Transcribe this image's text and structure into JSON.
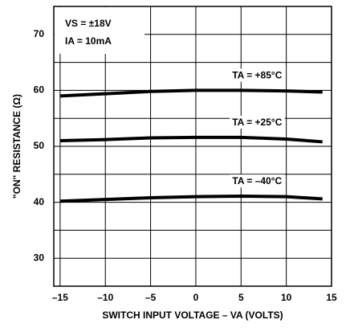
{
  "chart_data": {
    "type": "line",
    "xlabel": "SWITCH INPUT VOLTAGE – VA  (VOLTS)",
    "ylabel": "\"ON\" RESISTANCE (Ω)",
    "annotations": [
      "VS = ±18V",
      "IA = 10mA"
    ],
    "x": [
      -15,
      -10,
      -5,
      0,
      5,
      10,
      14
    ],
    "series": [
      {
        "name": "TA = +85°C",
        "color": "#000000",
        "values": [
          59.0,
          59.4,
          59.8,
          60.0,
          60.0,
          59.9,
          59.7
        ]
      },
      {
        "name": "TA = +25°C",
        "color": "#000000",
        "values": [
          51.0,
          51.2,
          51.5,
          51.6,
          51.6,
          51.3,
          50.8
        ]
      },
      {
        "name": "TA = –40°C",
        "color": "#000000",
        "values": [
          40.2,
          40.5,
          40.8,
          41.0,
          41.1,
          41.0,
          40.6
        ]
      }
    ],
    "xlim": [
      -15.7,
      15
    ],
    "ylim": [
      25,
      75
    ],
    "xticks": [
      {
        "value": -15,
        "label": "–15"
      },
      {
        "value": -10,
        "label": "–10"
      },
      {
        "value": -5,
        "label": "–5"
      },
      0,
      5,
      10,
      15
    ],
    "yticks": [
      30,
      40,
      50,
      60,
      70
    ],
    "yminor": [
      25,
      35,
      45,
      55,
      65,
      75
    ],
    "grid": true
  }
}
